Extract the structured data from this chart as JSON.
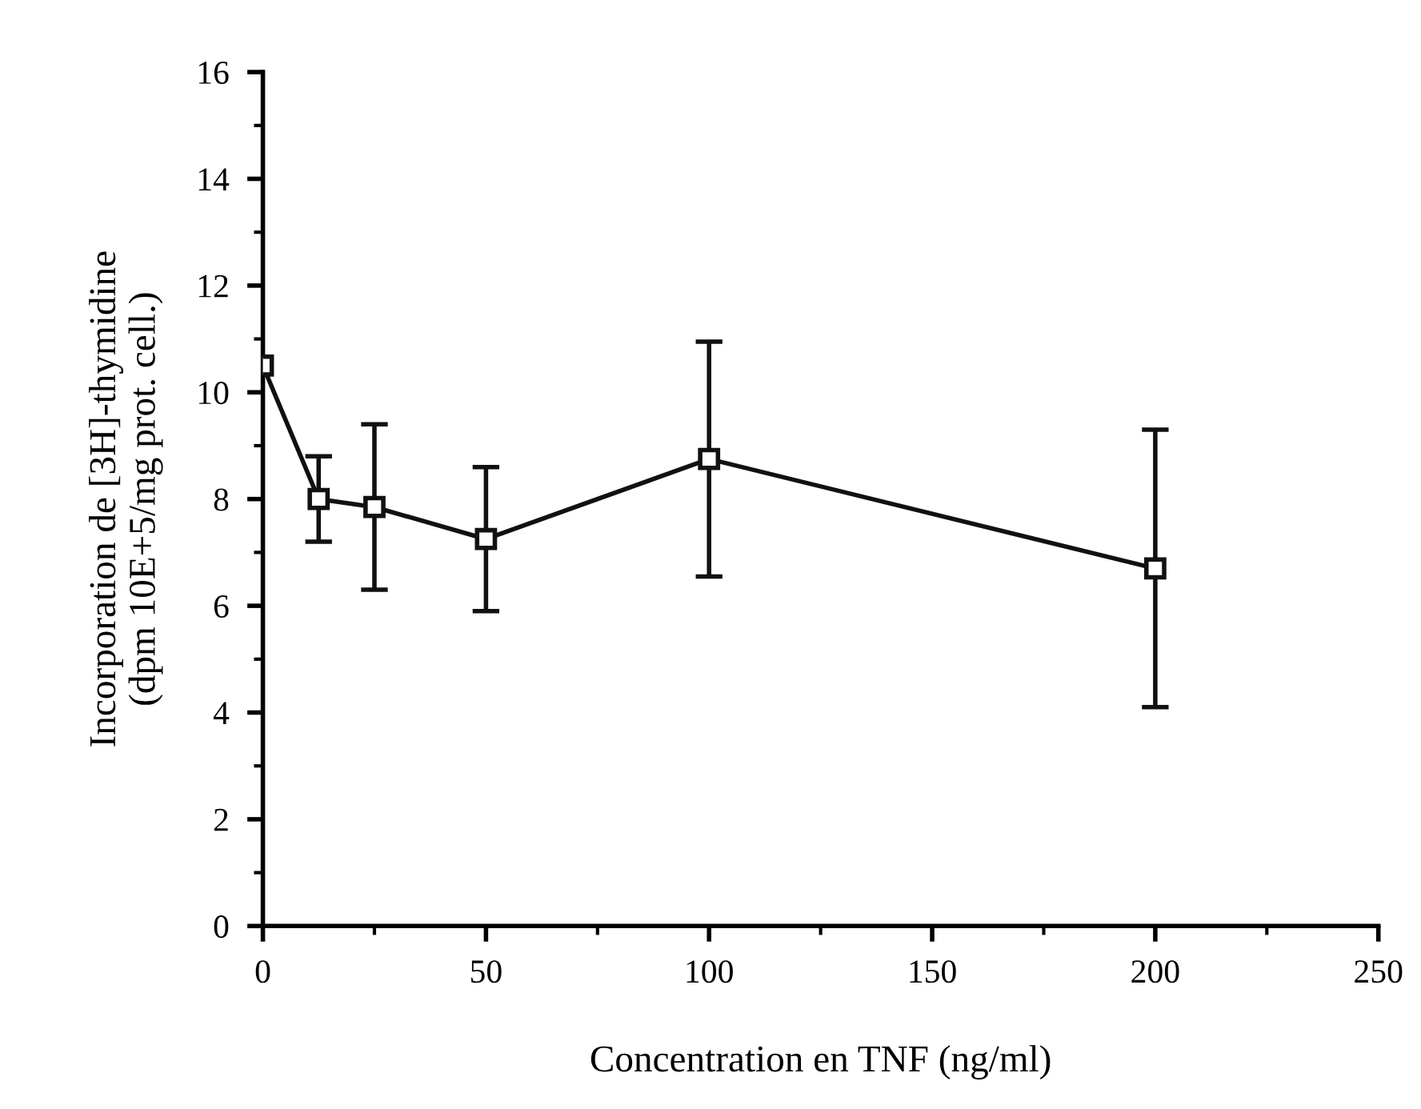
{
  "chart_data": {
    "type": "line",
    "xlabel": "Concentration en TNF (ng/ml)",
    "ylabel": "Incorporation de [3H]-thymidine\n(dpm 10E+5/mg prot. cell.)",
    "x": [
      0,
      12.5,
      25,
      50,
      100,
      200
    ],
    "series": [
      {
        "color": "#111111",
        "values": [
          10.5,
          8.0,
          7.85,
          7.25,
          8.75,
          6.7
        ],
        "errors": [
          null,
          [
            7.2,
            8.8
          ],
          [
            6.3,
            9.4
          ],
          [
            5.9,
            8.6
          ],
          [
            6.55,
            10.95
          ],
          [
            4.1,
            9.3
          ]
        ]
      }
    ],
    "xlim": [
      0,
      250
    ],
    "xticks": [
      0,
      50,
      100,
      150,
      200,
      250
    ],
    "ylim": [
      0,
      16
    ],
    "yticks": [
      0,
      2,
      4,
      6,
      8,
      10,
      12,
      14,
      16
    ],
    "marker": "square",
    "line_style": "solid",
    "grid": false,
    "legend": false
  }
}
